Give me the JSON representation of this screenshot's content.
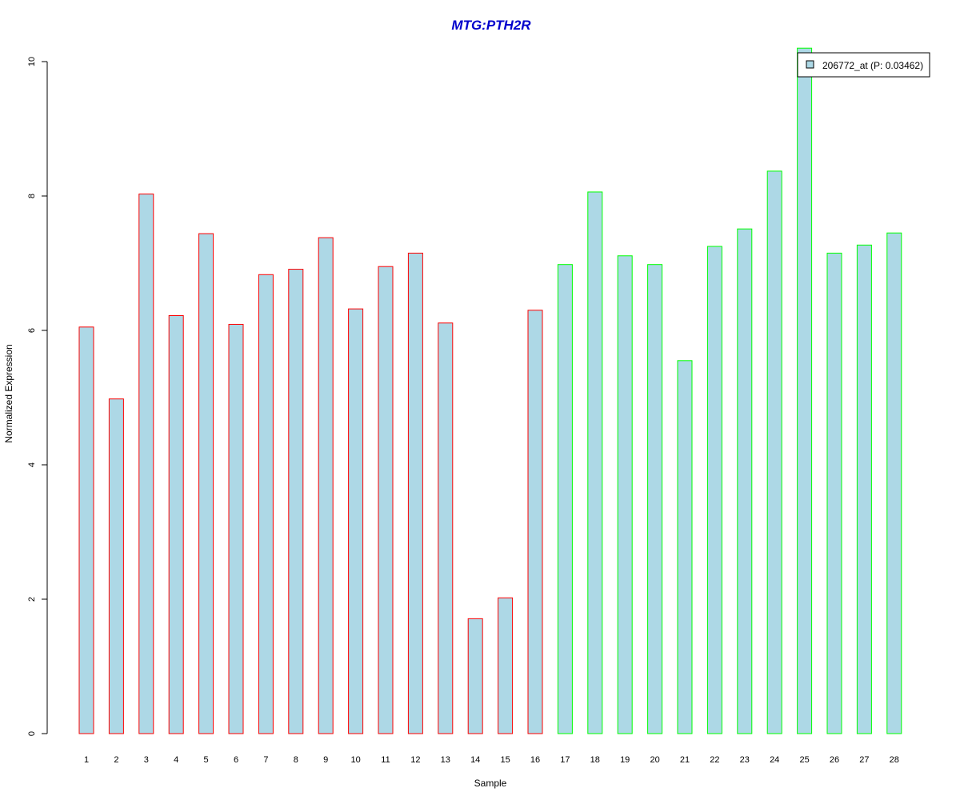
{
  "chart_data": {
    "type": "bar",
    "title": "MTG:PTH2R",
    "xlabel": "Sample",
    "ylabel": "Normalized Expression",
    "ylim": [
      0,
      10
    ],
    "yticks": [
      "0",
      "2",
      "4",
      "6",
      "8",
      "10"
    ],
    "categories": [
      "1",
      "2",
      "3",
      "4",
      "5",
      "6",
      "7",
      "8",
      "9",
      "10",
      "11",
      "12",
      "13",
      "14",
      "15",
      "16",
      "17",
      "18",
      "19",
      "20",
      "21",
      "22",
      "23",
      "24",
      "25",
      "26",
      "27",
      "28"
    ],
    "series": [
      {
        "name": "206772_at (P: 0.03462)",
        "values": [
          6.05,
          4.98,
          8.03,
          6.22,
          7.44,
          6.09,
          6.83,
          6.91,
          7.38,
          6.32,
          6.95,
          7.15,
          6.11,
          1.71,
          2.02,
          6.3,
          6.98,
          8.06,
          7.11,
          6.98,
          5.55,
          7.25,
          7.51,
          8.37,
          10.2,
          7.15,
          7.27,
          7.45
        ]
      }
    ],
    "bar_fill": "#add8e6",
    "group_border_colors": [
      "#ff0000",
      "#00ff00"
    ],
    "group_sizes": [
      16,
      12
    ],
    "title_color": "#0000cc",
    "legend_position": "top-right",
    "grid": false
  }
}
